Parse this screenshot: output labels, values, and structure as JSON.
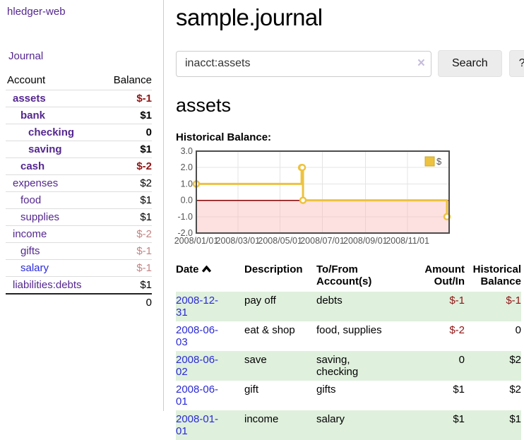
{
  "colors": {
    "link_purple": "#54278f",
    "link_blue": "#2a2ad6",
    "negative_red": "#8f1414",
    "muted_negative": "#c28484",
    "row_green": "#dff0dd",
    "series_yellow": "#edc240"
  },
  "sidebar": {
    "app_title": "hledger-web",
    "nav_journal": "Journal",
    "headers": {
      "account": "Account",
      "balance": "Balance"
    },
    "accounts": [
      {
        "name": "assets",
        "indent": 0,
        "bold": true,
        "balance": "$-1",
        "balance_class": "neg"
      },
      {
        "name": "bank",
        "indent": 1,
        "bold": true,
        "balance": "$1",
        "balance_class": ""
      },
      {
        "name": "checking",
        "indent": 2,
        "bold": true,
        "balance": "0",
        "balance_class": ""
      },
      {
        "name": "saving",
        "indent": 2,
        "bold": true,
        "balance": "$1",
        "balance_class": ""
      },
      {
        "name": "cash",
        "indent": 1,
        "bold": true,
        "balance": "$-2",
        "balance_class": "neg"
      },
      {
        "name": "expenses",
        "indent": 0,
        "bold": false,
        "balance": "$2",
        "balance_class": ""
      },
      {
        "name": "food",
        "indent": 1,
        "bold": false,
        "balance": "$1",
        "balance_class": ""
      },
      {
        "name": "supplies",
        "indent": 1,
        "bold": false,
        "balance": "$1",
        "balance_class": ""
      },
      {
        "name": "income",
        "indent": 0,
        "bold": false,
        "balance": "$-2",
        "balance_class": "muted-neg"
      },
      {
        "name": "gifts",
        "indent": 1,
        "bold": false,
        "balance": "$-1",
        "balance_class": "muted-neg"
      },
      {
        "name": "salary",
        "indent": 1,
        "bold": false,
        "balance": "$-1",
        "balance_class": "muted-neg",
        "link_color": "blue"
      },
      {
        "name": "liabilities:debts",
        "indent": 0,
        "bold": false,
        "balance": "$1",
        "balance_class": ""
      }
    ],
    "total": "0"
  },
  "main": {
    "title": "sample.journal",
    "search": {
      "value": "inacct:assets",
      "clear_icon": "×",
      "button_label": "Search",
      "help_label": "?"
    },
    "section_heading": "assets",
    "chart_label": "Historical Balance:"
  },
  "chart_data": {
    "type": "line",
    "step": true,
    "series": [
      {
        "name": "$",
        "color": "#edc240",
        "points": [
          [
            "2008-01-01",
            1
          ],
          [
            "2008-06-01",
            2
          ],
          [
            "2008-06-02",
            2
          ],
          [
            "2008-06-03",
            0
          ],
          [
            "2008-12-31",
            -1
          ]
        ]
      }
    ],
    "x_start": "2008-01-01",
    "x_end": "2008-12-31",
    "x_ticks": [
      {
        "label": "2008/01/01",
        "date": "2008-01-01",
        "gridline": false
      },
      {
        "label": "2008/03/01",
        "date": "2008-03-01",
        "gridline": true
      },
      {
        "label": "2008/05/01",
        "date": "2008-05-01",
        "gridline": true
      },
      {
        "label": "2008/07/01",
        "date": "2008-07-01",
        "gridline": true
      },
      {
        "label": "2008/09/01",
        "date": "2008-09-01",
        "gridline": true
      },
      {
        "label": "2008/11/01",
        "date": "2008-11-01",
        "gridline": true
      }
    ],
    "y_ticks": [
      {
        "value": 3,
        "label": "3.0"
      },
      {
        "value": 2,
        "label": "2.0"
      },
      {
        "value": 1,
        "label": "1.0"
      },
      {
        "value": 0,
        "label": "0.0"
      },
      {
        "value": -1,
        "label": "-1.0"
      },
      {
        "value": -2,
        "label": "-2.0"
      }
    ],
    "ylim": [
      -2,
      3
    ],
    "grid": true,
    "grid_color": "#e4e4e4",
    "border_color": "#4c4c4c",
    "zero_line_color": "#8b0000",
    "negative_region_fill": "rgba(250,180,180,0.42)",
    "legend": {
      "position": "top-right",
      "label": "$"
    }
  },
  "register": {
    "headers": {
      "date": "Date",
      "description": "Description",
      "accounts": "To/From Account(s)",
      "amount": "Amount Out/In",
      "balance": "Historical Balance"
    },
    "rows": [
      {
        "date": "2008-12-31",
        "description": "pay off",
        "accounts": "debts",
        "amount": "$-1",
        "amount_class": "neg",
        "balance": "$-1",
        "balance_class": "neg",
        "shaded": true
      },
      {
        "date": "2008-06-03",
        "description": "eat & shop",
        "accounts": "food, supplies",
        "amount": "$-2",
        "amount_class": "neg",
        "balance": "0",
        "balance_class": "",
        "shaded": false
      },
      {
        "date": "2008-06-02",
        "description": "save",
        "accounts": "saving, checking",
        "amount": "0",
        "amount_class": "",
        "balance": "$2",
        "balance_class": "",
        "shaded": true
      },
      {
        "date": "2008-06-01",
        "description": "gift",
        "accounts": "gifts",
        "amount": "$1",
        "amount_class": "",
        "balance": "$2",
        "balance_class": "",
        "shaded": false
      },
      {
        "date": "2008-01-01",
        "description": "income",
        "accounts": "salary",
        "amount": "$1",
        "amount_class": "",
        "balance": "$1",
        "balance_class": "",
        "shaded": true
      }
    ]
  }
}
